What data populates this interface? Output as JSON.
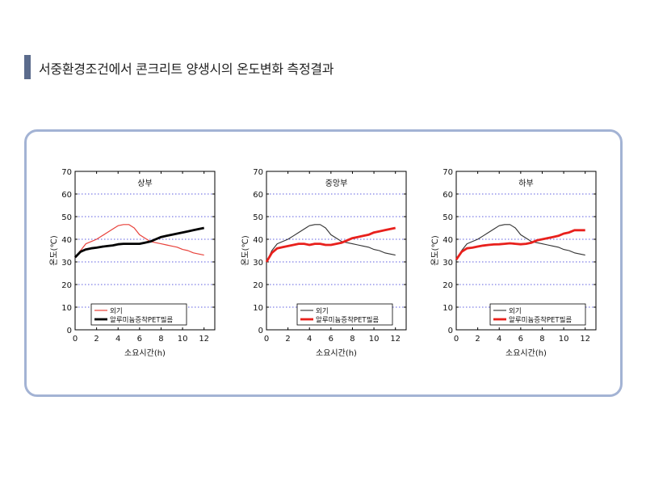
{
  "page": {
    "title": "서중환경조건에서 콘크리트 양생시의 온도변화 측정결과"
  },
  "colors": {
    "accent_bar": "#5b6b8c",
    "panel_border": "#a3b3d4",
    "grid": "#2b2bd6"
  },
  "chart_data": [
    {
      "type": "line",
      "title": "상부",
      "xlabel": "소요시간(h)",
      "ylabel": "온도(℃)",
      "xlim": [
        0,
        13
      ],
      "ylim": [
        0,
        70
      ],
      "xticks": [
        "0",
        "2",
        "4",
        "6",
        "8",
        "10",
        "12"
      ],
      "yticks": [
        "0",
        "10",
        "20",
        "30",
        "40",
        "50",
        "60",
        "70"
      ],
      "grid": "horizontal dotted",
      "legend_position": "bottom-left",
      "series": [
        {
          "name": "외기",
          "color": "#e8413a",
          "width": 1.2,
          "x": [
            0,
            0.5,
            1,
            1.5,
            2,
            2.5,
            3,
            3.5,
            4,
            4.5,
            5,
            5.5,
            6,
            6.5,
            7,
            7.5,
            8,
            8.5,
            9,
            9.5,
            10,
            10.5,
            11,
            11.5,
            12
          ],
          "y": [
            32,
            35,
            38,
            39,
            40,
            41.5,
            43,
            44.5,
            46,
            46.5,
            46.5,
            45,
            42,
            40.5,
            39,
            38.5,
            38,
            37.5,
            37,
            36.5,
            35.5,
            35,
            34,
            33.5,
            33
          ]
        },
        {
          "name": "알루미늄증착PET필름",
          "color": "#000000",
          "width": 2.8,
          "x": [
            0,
            0.5,
            1,
            1.5,
            2,
            2.5,
            3,
            3.5,
            4,
            4.5,
            5,
            5.5,
            6,
            6.5,
            7,
            7.5,
            8,
            8.5,
            9,
            9.5,
            10,
            10.5,
            11,
            11.5,
            12
          ],
          "y": [
            32,
            34.5,
            35.5,
            36,
            36.3,
            36.7,
            37,
            37.3,
            37.8,
            38,
            38,
            38,
            38,
            38.5,
            39,
            40,
            41,
            41.5,
            42,
            42.5,
            43,
            43.5,
            44,
            44.5,
            45
          ]
        }
      ]
    },
    {
      "type": "line",
      "title": "중앙부",
      "xlabel": "소요시간(h)",
      "ylabel": "온도(℃)",
      "xlim": [
        0,
        13
      ],
      "ylim": [
        0,
        70
      ],
      "xticks": [
        "0",
        "2",
        "4",
        "6",
        "8",
        "10",
        "12"
      ],
      "yticks": [
        "0",
        "10",
        "20",
        "30",
        "40",
        "50",
        "60",
        "70"
      ],
      "grid": "horizontal dotted",
      "legend_position": "bottom-center",
      "series": [
        {
          "name": "외기",
          "color": "#333333",
          "width": 1.1,
          "x": [
            0,
            0.5,
            1,
            1.5,
            2,
            2.5,
            3,
            3.5,
            4,
            4.5,
            5,
            5.5,
            6,
            6.5,
            7,
            7.5,
            8,
            8.5,
            9,
            9.5,
            10,
            10.5,
            11,
            11.5,
            12
          ],
          "y": [
            30,
            35,
            38,
            39,
            40,
            41.5,
            43,
            44.5,
            46,
            46.5,
            46.5,
            45,
            42,
            40.5,
            39,
            38.5,
            38,
            37.5,
            37,
            36.5,
            35.5,
            35,
            34,
            33.5,
            33
          ]
        },
        {
          "name": "알루미늄증착PET필름",
          "color": "#e8201c",
          "width": 2.8,
          "x": [
            0,
            0.5,
            1,
            1.5,
            2,
            2.5,
            3,
            3.5,
            4,
            4.5,
            5,
            5.5,
            6,
            6.5,
            7,
            7.5,
            8,
            8.5,
            9,
            9.5,
            10,
            10.5,
            11,
            11.5,
            12
          ],
          "y": [
            30,
            34,
            36,
            36.5,
            37,
            37.5,
            38,
            38,
            37.5,
            38,
            38,
            37.5,
            37.5,
            38,
            38.5,
            39.5,
            40.5,
            41,
            41.5,
            42,
            43,
            43.5,
            44,
            44.5,
            45
          ]
        }
      ]
    },
    {
      "type": "line",
      "title": "하부",
      "xlabel": "소요시간(h)",
      "ylabel": "온도(℃)",
      "xlim": [
        0,
        13
      ],
      "ylim": [
        0,
        70
      ],
      "xticks": [
        "0",
        "2",
        "4",
        "6",
        "8",
        "10",
        "12"
      ],
      "yticks": [
        "0",
        "10",
        "20",
        "30",
        "40",
        "50",
        "60",
        "70"
      ],
      "grid": "horizontal dotted",
      "legend_position": "bottom-center",
      "series": [
        {
          "name": "외기",
          "color": "#333333",
          "width": 1.1,
          "x": [
            0,
            0.5,
            1,
            1.5,
            2,
            2.5,
            3,
            3.5,
            4,
            4.5,
            5,
            5.5,
            6,
            6.5,
            7,
            7.5,
            8,
            8.5,
            9,
            9.5,
            10,
            10.5,
            11,
            11.5,
            12
          ],
          "y": [
            31,
            35,
            38,
            39,
            40,
            41.5,
            43,
            44.5,
            46,
            46.5,
            46.5,
            45,
            42,
            40.5,
            39,
            38.5,
            38,
            37.5,
            37,
            36.5,
            35.5,
            35,
            34,
            33.5,
            33
          ]
        },
        {
          "name": "알루미늄증착PET필름",
          "color": "#e8201c",
          "width": 2.8,
          "x": [
            0,
            0.5,
            1,
            1.5,
            2,
            2.5,
            3,
            3.5,
            4,
            4.5,
            5,
            5.5,
            6,
            6.5,
            7,
            7.5,
            8,
            8.5,
            9,
            9.5,
            10,
            10.5,
            11,
            11.5,
            12
          ],
          "y": [
            31,
            34.5,
            36,
            36.3,
            36.8,
            37.2,
            37.5,
            37.7,
            37.8,
            38,
            38.2,
            38,
            37.8,
            38,
            38.5,
            39.5,
            40,
            40.5,
            41,
            41.5,
            42.5,
            43,
            44,
            44,
            44
          ]
        }
      ]
    }
  ]
}
